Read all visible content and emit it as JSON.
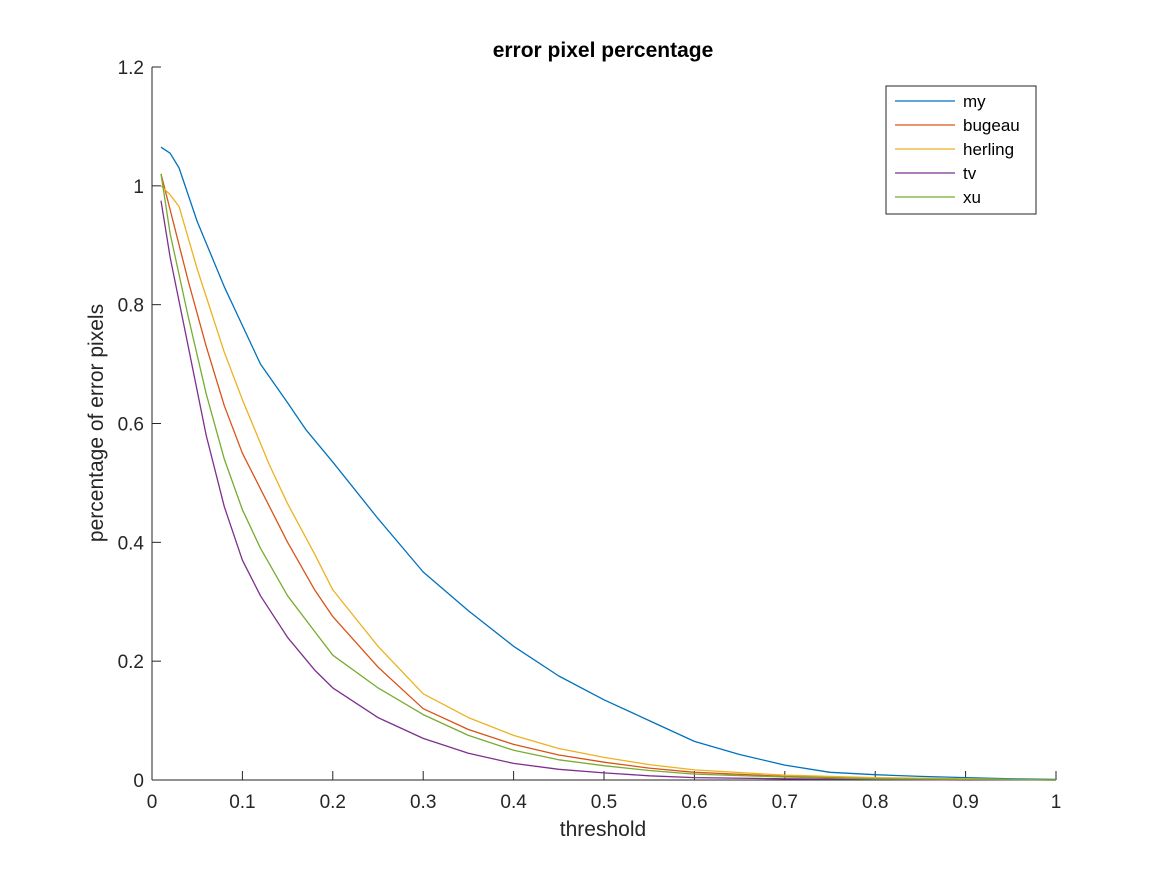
{
  "chart_data": {
    "type": "line",
    "title": "error pixel percentage",
    "xlabel": "threshold",
    "ylabel": "percentage of error pixels",
    "xlim": [
      0,
      1
    ],
    "ylim": [
      0,
      1.2
    ],
    "xticks": [
      "0",
      "0.1",
      "0.2",
      "0.3",
      "0.4",
      "0.5",
      "0.6",
      "0.7",
      "0.8",
      "0.9",
      "1"
    ],
    "yticks": [
      "0",
      "0.2",
      "0.4",
      "0.6",
      "0.8",
      "1",
      "1.2"
    ],
    "grid": false,
    "legend_position": "top-right",
    "series": [
      {
        "name": "my",
        "color": "#0072BD",
        "x": [
          0.01,
          0.02,
          0.03,
          0.05,
          0.08,
          0.1,
          0.12,
          0.15,
          0.17,
          0.2,
          0.25,
          0.3,
          0.35,
          0.4,
          0.45,
          0.5,
          0.55,
          0.6,
          0.65,
          0.7,
          0.75,
          0.8,
          0.85,
          0.9,
          0.95,
          1.0
        ],
        "y": [
          1.065,
          1.055,
          1.03,
          0.94,
          0.83,
          0.765,
          0.7,
          0.635,
          0.59,
          0.535,
          0.44,
          0.35,
          0.285,
          0.225,
          0.175,
          0.135,
          0.1,
          0.065,
          0.043,
          0.025,
          0.013,
          0.009,
          0.006,
          0.004,
          0.002,
          0.001
        ]
      },
      {
        "name": "bugeau",
        "color": "#D95319",
        "x": [
          0.01,
          0.02,
          0.04,
          0.06,
          0.08,
          0.1,
          0.12,
          0.15,
          0.18,
          0.2,
          0.25,
          0.3,
          0.35,
          0.4,
          0.45,
          0.5,
          0.55,
          0.6,
          0.7,
          0.8,
          0.9,
          1.0
        ],
        "y": [
          1.02,
          0.96,
          0.84,
          0.73,
          0.63,
          0.55,
          0.49,
          0.4,
          0.32,
          0.275,
          0.19,
          0.12,
          0.085,
          0.06,
          0.042,
          0.03,
          0.02,
          0.013,
          0.006,
          0.003,
          0.001,
          0.0
        ]
      },
      {
        "name": "herling",
        "color": "#EDB120",
        "x": [
          0.01,
          0.02,
          0.03,
          0.05,
          0.08,
          0.1,
          0.13,
          0.15,
          0.18,
          0.2,
          0.25,
          0.3,
          0.35,
          0.4,
          0.45,
          0.5,
          0.55,
          0.6,
          0.7,
          0.8,
          0.9,
          1.0
        ],
        "y": [
          1.0,
          0.985,
          0.965,
          0.86,
          0.72,
          0.64,
          0.53,
          0.465,
          0.38,
          0.32,
          0.225,
          0.145,
          0.105,
          0.075,
          0.053,
          0.038,
          0.026,
          0.017,
          0.008,
          0.004,
          0.002,
          0.0
        ]
      },
      {
        "name": "tv",
        "color": "#7E2F8E",
        "x": [
          0.01,
          0.02,
          0.04,
          0.06,
          0.08,
          0.1,
          0.12,
          0.15,
          0.18,
          0.2,
          0.25,
          0.3,
          0.35,
          0.4,
          0.45,
          0.5,
          0.55,
          0.6,
          0.7,
          0.8,
          0.9,
          1.0
        ],
        "y": [
          0.975,
          0.88,
          0.73,
          0.58,
          0.46,
          0.37,
          0.31,
          0.24,
          0.185,
          0.155,
          0.105,
          0.07,
          0.045,
          0.028,
          0.018,
          0.012,
          0.007,
          0.004,
          0.002,
          0.001,
          0.0,
          0.0
        ]
      },
      {
        "name": "xu",
        "color": "#77AC30",
        "x": [
          0.01,
          0.02,
          0.04,
          0.06,
          0.08,
          0.1,
          0.12,
          0.15,
          0.18,
          0.2,
          0.25,
          0.3,
          0.35,
          0.4,
          0.45,
          0.5,
          0.55,
          0.6,
          0.7,
          0.8,
          0.9,
          1.0
        ],
        "y": [
          1.02,
          0.92,
          0.78,
          0.65,
          0.54,
          0.455,
          0.39,
          0.31,
          0.25,
          0.21,
          0.155,
          0.11,
          0.075,
          0.05,
          0.034,
          0.024,
          0.016,
          0.01,
          0.005,
          0.002,
          0.001,
          0.0
        ]
      }
    ]
  }
}
